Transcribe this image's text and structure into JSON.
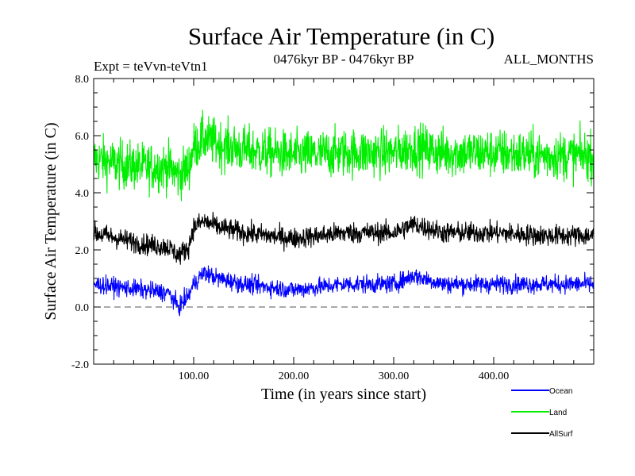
{
  "chart_data": {
    "type": "line",
    "title": "Surface Air Temperature (in C)",
    "subtitle_left": "Expt = teVvn-teVtn1",
    "subtitle_center": "0476kyr BP - 0476kyr BP",
    "subtitle_right": "ALL_MONTHS",
    "xlabel": "Time (in years since start)",
    "ylabel": "Surface Air Temperature (in C)",
    "xlim": [
      0,
      500
    ],
    "ylim": [
      -2.0,
      8.0
    ],
    "xticks": [
      100,
      200,
      300,
      400
    ],
    "xtick_labels": [
      "100.00",
      "200.00",
      "300.00",
      "400.00"
    ],
    "yticks": [
      -2,
      0,
      2,
      4,
      6,
      8
    ],
    "ytick_labels": [
      "-2.0",
      "0.0",
      "2.0",
      "4.0",
      "6.0",
      "8.0"
    ],
    "reference_line": {
      "y": 0.0,
      "style": "dashed"
    },
    "legend_position": "bottom-right",
    "series": [
      {
        "name": "Ocean",
        "color": "#0000ff",
        "x": [
          0,
          25,
          50,
          75,
          85,
          95,
          100,
          110,
          125,
          150,
          200,
          250,
          300,
          320,
          350,
          400,
          450,
          500
        ],
        "values": [
          0.8,
          0.7,
          0.6,
          0.5,
          0.0,
          0.4,
          0.8,
          1.2,
          1.0,
          0.8,
          0.6,
          0.8,
          0.8,
          1.1,
          0.8,
          0.8,
          0.8,
          0.8
        ]
      },
      {
        "name": "Land",
        "color": "#00ee00",
        "x": [
          0,
          25,
          50,
          75,
          85,
          95,
          100,
          110,
          125,
          150,
          200,
          250,
          300,
          320,
          350,
          400,
          450,
          500
        ],
        "values": [
          5.2,
          5.0,
          4.9,
          4.9,
          4.6,
          4.9,
          5.6,
          5.9,
          5.7,
          5.5,
          5.3,
          5.4,
          5.4,
          5.6,
          5.4,
          5.4,
          5.3,
          5.3
        ]
      },
      {
        "name": "AllSurf",
        "color": "#000000",
        "x": [
          0,
          25,
          50,
          75,
          85,
          95,
          100,
          110,
          125,
          150,
          200,
          250,
          300,
          320,
          350,
          400,
          450,
          500
        ],
        "values": [
          2.6,
          2.4,
          2.2,
          2.1,
          1.8,
          2.1,
          2.8,
          3.0,
          2.8,
          2.6,
          2.4,
          2.6,
          2.6,
          2.9,
          2.6,
          2.6,
          2.5,
          2.5
        ]
      }
    ]
  }
}
